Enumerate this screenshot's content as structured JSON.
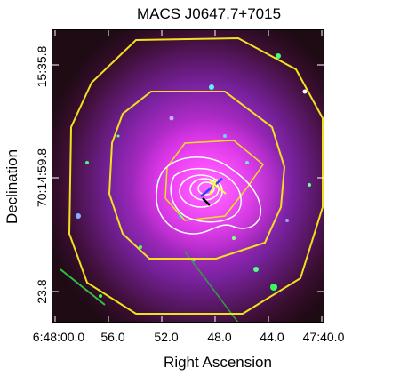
{
  "figure": {
    "title": "MACS J0647.7+7015",
    "xlabel": "Right Ascension",
    "ylabel": "Declination",
    "x_ticks": [
      "6:48:00.0",
      "56.0",
      "52.0",
      "48.0",
      "44.0",
      "47:40.0"
    ],
    "y_ticks": [
      "15:35.8",
      "70:14:59.8",
      "23.8"
    ]
  },
  "colors": {
    "contour_large": "#f0e020",
    "contour_small": "#ffffff",
    "emission": "#e020e0",
    "background": "#1a0a14"
  }
}
